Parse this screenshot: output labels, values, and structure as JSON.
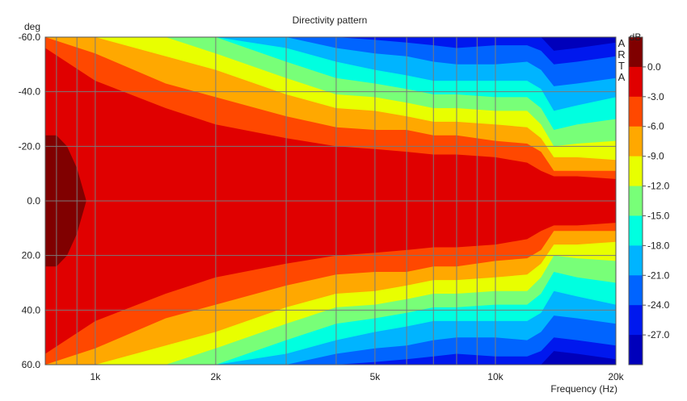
{
  "chart_data": {
    "type": "heatmap",
    "title": "Directivity pattern",
    "xlabel": "Frequency (Hz)",
    "ylabel": "deg",
    "watermark": "ARTA",
    "x_scale": "log",
    "xlim": [
      750,
      20000
    ],
    "ylim": [
      -60,
      60
    ],
    "x_ticks": [
      {
        "value": 1000,
        "label": "1k"
      },
      {
        "value": 2000,
        "label": "2k"
      },
      {
        "value": 5000,
        "label": "5k"
      },
      {
        "value": 10000,
        "label": "10k"
      },
      {
        "value": 20000,
        "label": "20k"
      }
    ],
    "x_minor_ticks": [
      800,
      900,
      3000,
      4000,
      6000,
      7000,
      8000,
      9000
    ],
    "y_ticks": [
      {
        "value": -60,
        "label": "-60.0"
      },
      {
        "value": -40,
        "label": "-40.0"
      },
      {
        "value": -20,
        "label": "-20.0"
      },
      {
        "value": 0,
        "label": "0.0"
      },
      {
        "value": 20,
        "label": "20.0"
      },
      {
        "value": 40,
        "label": "40.0"
      },
      {
        "value": 60,
        "label": "60.0"
      }
    ],
    "grid": true,
    "colorbar": {
      "label": "dB",
      "position": "right",
      "levels": [
        {
          "label": "0.0",
          "color": "#e00000"
        },
        {
          "label": "-3.0",
          "color": "#ff4800"
        },
        {
          "label": "-6.0",
          "color": "#ffa800"
        },
        {
          "label": "-9.0",
          "color": "#e8ff00"
        },
        {
          "label": "-12.0",
          "color": "#78ff78"
        },
        {
          "label": "-15.0",
          "color": "#00ffe0"
        },
        {
          "label": "-18.0",
          "color": "#00b4ff"
        },
        {
          "label": "-21.0",
          "color": "#0064ff"
        },
        {
          "label": "-24.0",
          "color": "#0018ee"
        },
        {
          "label": "-27.0",
          "color": "#0000bb"
        }
      ],
      "top_color": "#800000",
      "bottom_color": "#00006a"
    },
    "contour_boundaries_deg": {
      "frequencies_hz": [
        750,
        1000,
        1500,
        2000,
        3000,
        4000,
        5000,
        6000,
        7000,
        8000,
        10000,
        12000,
        13000,
        14000,
        16000,
        20000
      ],
      "levels": [
        {
          "level_db": -3,
          "angle_deg": [
            56,
            44,
            34,
            28,
            23,
            20,
            19,
            18,
            17,
            17,
            16,
            14,
            11,
            9,
            9,
            8
          ]
        },
        {
          "level_db": -6,
          "angle_deg": [
            60,
            54,
            43,
            38,
            31,
            27,
            26,
            26,
            24,
            24,
            22,
            21,
            18,
            11,
            11,
            11
          ]
        },
        {
          "level_db": -9,
          "angle_deg": [
            60,
            60,
            53,
            48,
            39,
            34,
            33,
            31,
            29,
            29,
            28,
            27,
            23,
            16,
            16,
            15
          ]
        },
        {
          "level_db": -12,
          "angle_deg": [
            60,
            60,
            60,
            54,
            45,
            39,
            38,
            36,
            34,
            34,
            33,
            33,
            28,
            20,
            21,
            22
          ]
        },
        {
          "level_db": -15,
          "angle_deg": [
            60,
            60,
            60,
            60,
            51,
            45,
            43,
            41,
            39,
            39,
            38,
            38,
            34,
            26,
            28,
            30
          ]
        },
        {
          "level_db": -18,
          "angle_deg": [
            60,
            60,
            60,
            60,
            56,
            51,
            48,
            46,
            44,
            44,
            44,
            44,
            41,
            33,
            35,
            38
          ]
        },
        {
          "level_db": -21,
          "angle_deg": [
            60,
            60,
            60,
            60,
            60,
            56,
            54,
            53,
            51,
            50,
            50,
            51,
            48,
            42,
            43,
            45
          ]
        },
        {
          "level_db": -24,
          "angle_deg": [
            60,
            60,
            60,
            60,
            60,
            60,
            59,
            58,
            57,
            56,
            57,
            57,
            55,
            50,
            51,
            53
          ]
        },
        {
          "level_db": -27,
          "angle_deg": [
            60,
            60,
            60,
            60,
            60,
            60,
            60,
            60,
            60,
            60,
            60,
            60,
            60,
            55,
            56,
            58
          ]
        }
      ],
      "above_0db_region": {
        "frequencies_hz": [
          750,
          800,
          850,
          900,
          950
        ],
        "angle_deg": [
          24,
          24,
          20,
          12,
          0
        ]
      }
    }
  }
}
